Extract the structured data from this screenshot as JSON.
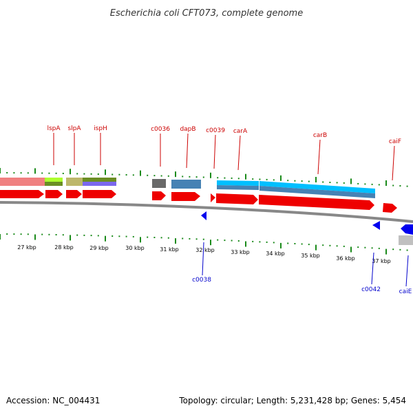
{
  "header": {
    "title": "Escherichia coli CFT073, complete genome"
  },
  "footer": {
    "accession": "Accession: NC_004431",
    "summary": "Topology: circular; Length: 5,231,428 bp; Genes: 5,454"
  },
  "colors": {
    "forward_gene": "#ee0000",
    "reverse_gene": "#0000ee",
    "backbone": "#888888",
    "tick": "#1a8a1a",
    "fwd_label": "#cc0000",
    "rev_label": "#0000cc"
  },
  "ticks": [
    {
      "label": "27 kbp"
    },
    {
      "label": "28 kbp"
    },
    {
      "label": "29 kbp"
    },
    {
      "label": "30 kbp"
    },
    {
      "label": "31 kbp"
    },
    {
      "label": "32 kbp"
    },
    {
      "label": "33 kbp"
    },
    {
      "label": "34 kbp"
    },
    {
      "label": "35 kbp"
    },
    {
      "label": "36 kbp"
    },
    {
      "label": "37 kbp"
    }
  ],
  "forward_labels": [
    {
      "name": "lspA"
    },
    {
      "name": "slpA"
    },
    {
      "name": "ispH"
    },
    {
      "name": "c0036"
    },
    {
      "name": "dapB"
    },
    {
      "name": "c0039"
    },
    {
      "name": "carA"
    },
    {
      "name": "carB"
    },
    {
      "name": "caiF"
    }
  ],
  "reverse_labels": [
    {
      "name": "c0038"
    },
    {
      "name": "c0042"
    },
    {
      "name": "caiE"
    }
  ]
}
